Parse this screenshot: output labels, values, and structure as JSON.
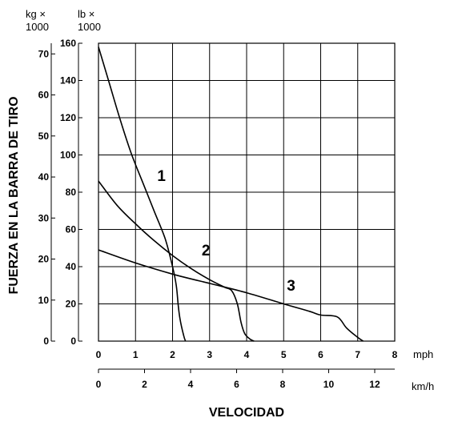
{
  "chart_data": {
    "type": "line",
    "xlabel": "VELOCIDAD",
    "ylabel": "FUERZA EN LA BARRA DE TIRO",
    "x_axes": [
      {
        "unit": "mph",
        "range": [
          0,
          8
        ],
        "ticks": [
          "0",
          "1",
          "2",
          "3",
          "4",
          "5",
          "6",
          "7",
          "8"
        ]
      },
      {
        "unit": "km/h",
        "range": [
          0,
          12.87
        ],
        "ticks": [
          "0",
          "2",
          "4",
          "6",
          "8",
          "10",
          "12"
        ],
        "tick_values": [
          0,
          2,
          4,
          6,
          8,
          10,
          12
        ]
      }
    ],
    "y_axes": [
      {
        "unit_line1": "lb ×",
        "unit_line2": "1000",
        "range": [
          0,
          160
        ],
        "ticks": [
          "0",
          "20",
          "40",
          "60",
          "80",
          "100",
          "120",
          "140",
          "160"
        ],
        "tick_values": [
          0,
          20,
          40,
          60,
          80,
          100,
          120,
          140,
          160
        ]
      },
      {
        "unit_line1": "kg ×",
        "unit_line2": "1000",
        "range": [
          0,
          72.6
        ],
        "ticks": [
          "0",
          "10",
          "20",
          "30",
          "40",
          "50",
          "60",
          "70"
        ],
        "tick_values": [
          0,
          10,
          20,
          30,
          40,
          50,
          60,
          70
        ]
      }
    ],
    "grid": true,
    "series": [
      {
        "name": "1",
        "x_unit": "mph",
        "y_unit": "lb × 1000",
        "x": [
          0,
          0.3,
          0.6,
          0.9,
          1.2,
          1.5,
          1.8,
          2.0,
          2.1,
          2.15,
          2.2,
          2.3,
          2.35
        ],
        "y": [
          158,
          138,
          118,
          100,
          85,
          70,
          55,
          40,
          30,
          20,
          12,
          3,
          0
        ]
      },
      {
        "name": "2",
        "x_unit": "mph",
        "y_unit": "lb × 1000",
        "x": [
          0,
          0.5,
          1.0,
          1.5,
          2.0,
          2.5,
          3.0,
          3.4,
          3.6,
          3.75,
          3.85,
          3.95,
          4.1,
          4.2
        ],
        "y": [
          86,
          73,
          63,
          54,
          46,
          39,
          33,
          29,
          27,
          20,
          10,
          4,
          1,
          0
        ]
      },
      {
        "name": "3",
        "x_unit": "mph",
        "y_unit": "lb × 1000",
        "x": [
          0,
          1.0,
          2.0,
          3.0,
          4.0,
          5.0,
          5.7,
          6.0,
          6.45,
          6.7,
          7.0,
          7.15
        ],
        "y": [
          49,
          42,
          36,
          31,
          26,
          20,
          16,
          14,
          13,
          7,
          2,
          0
        ]
      }
    ],
    "series_labels": [
      {
        "text": "1",
        "x": 1.7,
        "y": 86
      },
      {
        "text": "2",
        "x": 2.9,
        "y": 46
      },
      {
        "text": "3",
        "x": 5.2,
        "y": 27
      }
    ]
  }
}
